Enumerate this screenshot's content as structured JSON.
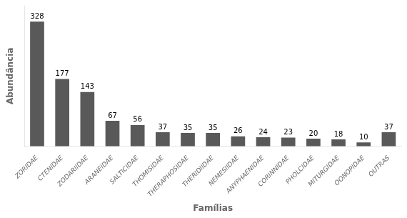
{
  "chart_data": {
    "type": "bar",
    "xlabel": "Famílias",
    "ylabel": "Abundância",
    "categories": [
      "ZORIDAE",
      "CTENIDAE",
      "ZODARIIDAE",
      "ARANEIDAE",
      "SALTICIDAE",
      "THOMISIDAE",
      "THERAPHOSIDAE",
      "THERIDIIDAE",
      "NEMESIIDAE",
      "ANYPHAENIDAE",
      "CORINNIDAE",
      "PHOLCIDAE",
      "MITURGIDAE",
      "OONOPIDAE",
      "OUTRAS"
    ],
    "values": [
      328,
      177,
      143,
      67,
      56,
      37,
      35,
      35,
      26,
      24,
      23,
      20,
      18,
      10,
      37
    ],
    "color": "#595959",
    "ylim": [
      0,
      370
    ],
    "grid": false,
    "data_labels": true,
    "tick_labels": "x"
  }
}
